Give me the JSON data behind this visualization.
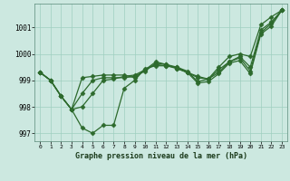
{
  "xlabel": "Graphe pression niveau de la mer (hPa)",
  "background_color": "#cce8e0",
  "line_color": "#2d6a2d",
  "marker": "D",
  "markersize": 2.5,
  "linewidth": 0.9,
  "xlim": [
    -0.5,
    23.5
  ],
  "ylim": [
    996.7,
    1001.9
  ],
  "yticks": [
    997,
    998,
    999,
    1000,
    1001
  ],
  "xticks": [
    0,
    1,
    2,
    3,
    4,
    5,
    6,
    7,
    8,
    9,
    10,
    11,
    12,
    13,
    14,
    15,
    16,
    17,
    18,
    19,
    20,
    21,
    22,
    23
  ],
  "series": [
    [
      999.3,
      999.0,
      998.4,
      997.9,
      997.2,
      997.0,
      997.3,
      997.3,
      998.7,
      999.0,
      999.45,
      999.55,
      999.55,
      999.5,
      999.3,
      999.15,
      999.05,
      999.5,
      999.9,
      1000.0,
      999.9,
      1001.1,
      1001.4,
      1001.65
    ],
    [
      999.3,
      999.0,
      998.4,
      997.9,
      998.0,
      998.5,
      999.0,
      999.05,
      999.15,
      999.2,
      999.4,
      999.6,
      999.55,
      999.45,
      999.3,
      999.1,
      999.05,
      999.4,
      999.7,
      999.9,
      999.5,
      1000.9,
      1001.2,
      1001.65
    ],
    [
      999.3,
      999.0,
      998.4,
      997.9,
      998.5,
      999.0,
      999.1,
      999.1,
      999.1,
      999.15,
      999.35,
      999.65,
      999.6,
      999.5,
      999.35,
      998.95,
      999.05,
      999.3,
      999.7,
      999.85,
      999.35,
      1000.8,
      1001.15,
      1001.65
    ],
    [
      999.3,
      999.0,
      998.4,
      997.9,
      999.1,
      999.15,
      999.2,
      999.2,
      999.2,
      999.1,
      999.4,
      999.7,
      999.6,
      999.45,
      999.3,
      998.9,
      998.95,
      999.25,
      999.65,
      999.75,
      999.25,
      1000.75,
      1001.05,
      1001.65
    ]
  ]
}
